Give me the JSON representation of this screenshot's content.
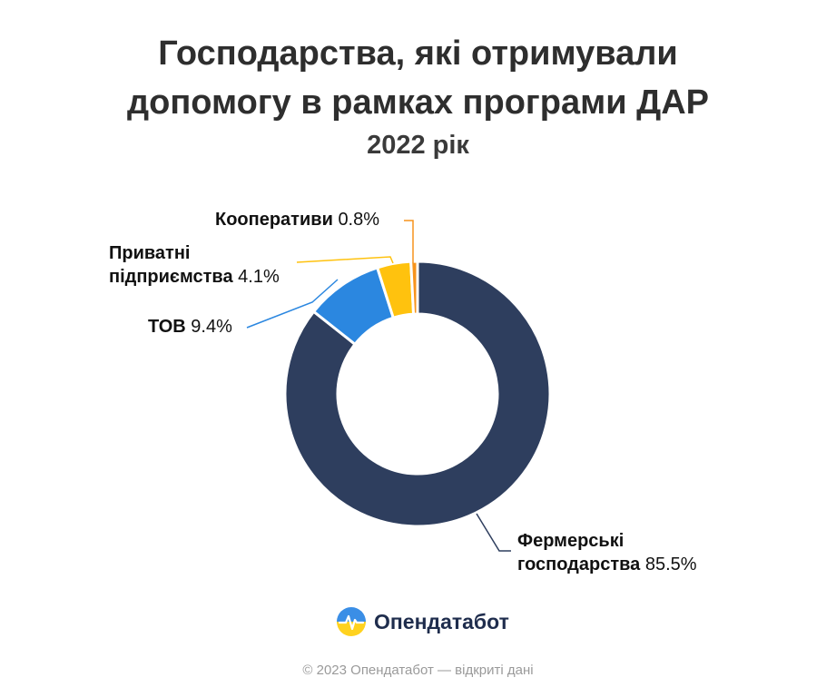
{
  "header": {
    "title_line1": "Господарства, які отримували",
    "title_line2": "допомогу в рамках програми ДАР",
    "subtitle": "2022 рік"
  },
  "labels": {
    "coop_name": "Кооперативи",
    "coop_pct": "0.8%",
    "private_name_1": "Приватні",
    "private_name_2": "підприємства",
    "private_pct": "4.1%",
    "tov_name": "ТОВ",
    "tov_pct": "9.4%",
    "farm_name_1": "Фермерські",
    "farm_name_2": "господарства",
    "farm_pct": "85.5%"
  },
  "chart_data": {
    "type": "pie",
    "title": "Господарства, які отримували допомогу в рамках програми ДАР",
    "subtitle": "2022 рік",
    "categories": [
      "Фермерські господарства",
      "ТОВ",
      "Приватні підприємства",
      "Кооперативи"
    ],
    "values": [
      85.5,
      9.4,
      4.1,
      0.8
    ],
    "unit": "%",
    "colors": [
      "#2e3e5e",
      "#2b87e0",
      "#ffc20e",
      "#f7941d"
    ],
    "donut": true
  },
  "logo": {
    "text": "Опендатабот",
    "icon": "opendatabot-logo-icon"
  },
  "footer": {
    "text": "© 2023 Опендатабот — відкриті дані"
  }
}
